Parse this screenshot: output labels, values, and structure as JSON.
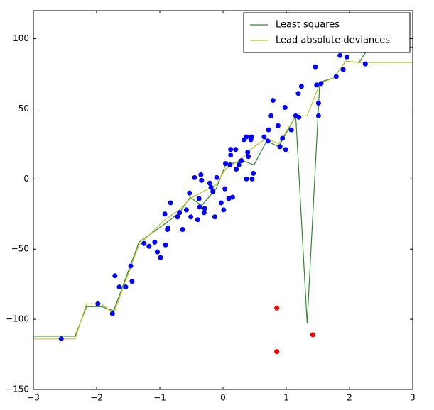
{
  "chart_data": {
    "type": "scatter",
    "xlim": [
      -3,
      3
    ],
    "ylim": [
      -150,
      120
    ],
    "xticks": [
      {
        "value": -3,
        "label": "−3"
      },
      {
        "value": -2,
        "label": "−2"
      },
      {
        "value": -1,
        "label": "−1"
      },
      0,
      1,
      2,
      3
    ],
    "yticks": [
      {
        "value": -150,
        "label": "−150"
      },
      {
        "value": -100,
        "label": "−100"
      },
      {
        "value": -50,
        "label": "−50"
      },
      0,
      50,
      100
    ],
    "legend": "upper right",
    "series": [
      {
        "name": "Least squares",
        "type": "line",
        "color": "#2e8b2e",
        "x": [
          -3,
          -2.34,
          -2.16,
          -1.92,
          -1.73,
          -1.33,
          -0.92,
          -0.69,
          -0.52,
          -0.34,
          -0.11,
          0.04,
          0.31,
          0.49,
          0.69,
          0.88,
          1.15,
          1.33,
          1.53,
          1.75,
          1.94,
          2.15,
          2.31,
          3
        ],
        "values": [
          -112,
          -112,
          -91,
          -91,
          -94,
          -45,
          -32,
          -24,
          -13,
          -19,
          -7,
          10,
          13,
          10,
          27,
          23,
          45,
          -103,
          69,
          72,
          84,
          83,
          94,
          94
        ]
      },
      {
        "name": "Lead absolute deviances",
        "type": "line",
        "color": "#c2c22e",
        "x": [
          -3,
          -2.34,
          -2.16,
          -1.92,
          -1.73,
          -1.33,
          -0.92,
          -0.69,
          -0.52,
          -0.11,
          0.04,
          0.31,
          0.49,
          0.69,
          0.88,
          1.15,
          1.33,
          1.53,
          1.75,
          1.94,
          2.15,
          3
        ],
        "values": [
          -114,
          -114,
          -89,
          -89,
          -96,
          -47,
          -29,
          -22,
          -14,
          -4,
          7,
          15,
          23,
          29,
          25,
          45,
          45,
          68,
          72,
          84,
          83,
          83
        ]
      },
      {
        "type": "scatter",
        "color": "#0000ff",
        "x": [
          -2.56,
          -1.98,
          -1.71,
          -1.75,
          -1.64,
          -1.54,
          -1.46,
          -1.44,
          -1.25,
          -1.17,
          -1.08,
          -1.04,
          -0.99,
          -0.92,
          -0.91,
          -0.88,
          -0.87,
          -0.83,
          -0.72,
          -0.69,
          -0.64,
          -0.58,
          -0.53,
          -0.51,
          -0.45,
          -0.4,
          -0.38,
          -0.37,
          -0.35,
          -0.34,
          -0.3,
          -0.29,
          -0.21,
          -0.19,
          -0.16,
          -0.13,
          -0.1,
          -0.03,
          0.01,
          0.03,
          0.04,
          0.09,
          0.11,
          0.12,
          0.12,
          0.15,
          0.2,
          0.21,
          0.25,
          0.29,
          0.33,
          0.37,
          0.37,
          0.39,
          0.4,
          0.44,
          0.45,
          0.46,
          0.48,
          0.65,
          0.71,
          0.72,
          0.76,
          0.79,
          0.87,
          0.9,
          0.94,
          0.98,
          0.99,
          1.08,
          1.15,
          1.2,
          1.19,
          1.24,
          1.46,
          1.48,
          1.51,
          1.51,
          1.55,
          1.79,
          1.85,
          1.9,
          1.96,
          2.25
        ],
        "values": [
          -114,
          -89,
          -69,
          -96,
          -77,
          -77,
          -62,
          -73,
          -46,
          -48,
          -45,
          -52,
          -56,
          -25,
          -47,
          -36,
          -35,
          -17,
          -27,
          -24,
          -36,
          -22,
          -10,
          -27,
          1,
          -29,
          -14,
          -20,
          3,
          -1,
          -24,
          -21,
          -3,
          -6,
          -9,
          -27,
          1,
          -17,
          -22,
          -7,
          11,
          -14,
          10,
          17,
          21,
          -13,
          21,
          7,
          10,
          13,
          28,
          30,
          0,
          19,
          16,
          28,
          30,
          0,
          4,
          30,
          27,
          35,
          45,
          56,
          38,
          23,
          29,
          51,
          21,
          35,
          45,
          44,
          61,
          66,
          80,
          67,
          54,
          45,
          68,
          73,
          88,
          78,
          87,
          82
        ]
      },
      {
        "type": "scatter",
        "color": "#ff0000",
        "x": [
          0.85,
          0.85,
          1.42
        ],
        "values": [
          -92,
          -123,
          -111
        ]
      }
    ]
  }
}
